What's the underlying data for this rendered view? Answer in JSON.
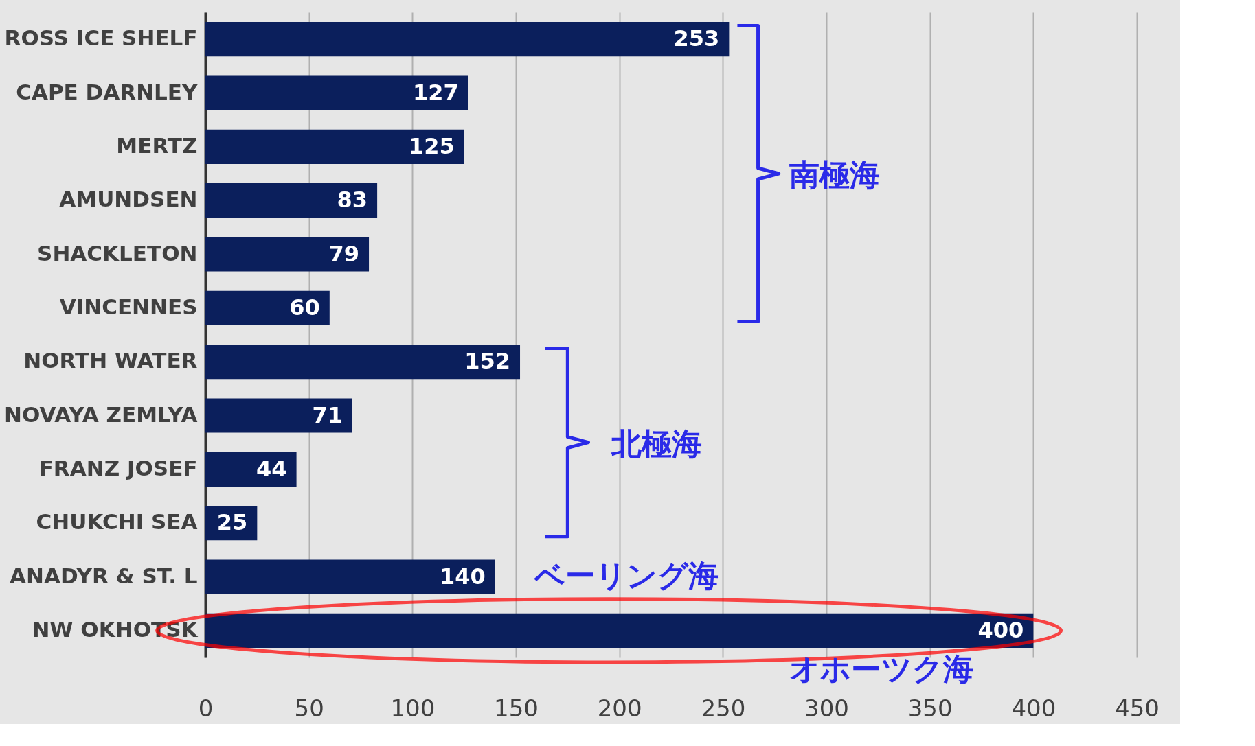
{
  "chart_data": {
    "type": "bar",
    "orientation": "horizontal",
    "categories": [
      "ROSS ICE SHELF",
      "CAPE DARNLEY",
      "MERTZ",
      "AMUNDSEN",
      "SHACKLETON",
      "VINCENNES",
      "NORTH WATER",
      "NOVAYA ZEMLYA",
      "FRANZ JOSEF",
      "CHUKCHI  SEA",
      "ANADYR & ST. L",
      "NW OKHOTSK"
    ],
    "values": [
      253,
      127,
      125,
      83,
      79,
      60,
      152,
      71,
      44,
      25,
      140,
      400
    ],
    "color": "#0b1f5c",
    "data_labels": true,
    "xlim": [
      0,
      450
    ],
    "xticks": [
      0,
      50,
      100,
      150,
      200,
      250,
      300,
      350,
      400,
      450
    ],
    "grid": "x",
    "annotations": [
      "南極海",
      "北極海",
      "ベーリング海",
      "オホーツク海"
    ]
  }
}
